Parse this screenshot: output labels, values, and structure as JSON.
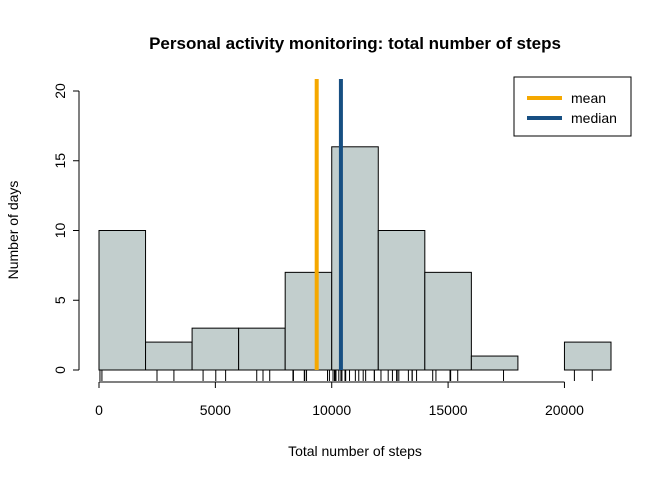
{
  "chart_data": {
    "type": "bar",
    "title": "Personal activity monitoring: total number of steps",
    "xlabel": "Total number of steps",
    "ylabel": "Number of days",
    "xlim": [
      0,
      22000
    ],
    "ylim": [
      0,
      20
    ],
    "xticks": [
      0,
      5000,
      10000,
      15000,
      20000
    ],
    "yticks": [
      0,
      5,
      10,
      15,
      20
    ],
    "bin_edges": [
      0,
      2000,
      4000,
      6000,
      8000,
      10000,
      12000,
      14000,
      16000,
      18000,
      20000,
      22000
    ],
    "counts": [
      10,
      2,
      3,
      3,
      7,
      16,
      10,
      7,
      1,
      0,
      2
    ],
    "bar_color": "#c2cecd",
    "mean": 9354,
    "median": 10395,
    "mean_color": "#f5a800",
    "median_color": "#174f82",
    "legend": {
      "placement": "top-right",
      "entries": [
        {
          "label": "mean",
          "color": "#f5a800"
        },
        {
          "label": "median",
          "color": "#174f82"
        }
      ]
    },
    "rug": [
      41,
      126,
      2492,
      3219,
      4472,
      5018,
      5441,
      6778,
      7047,
      7336,
      8334,
      8355,
      8821,
      8841,
      8918,
      9819,
      9900,
      10056,
      10119,
      10139,
      10183,
      10304,
      10395,
      10439,
      10571,
      10600,
      10765,
      11015,
      11162,
      11352,
      11458,
      11829,
      11834,
      12116,
      12426,
      12608,
      12787,
      12811,
      12883,
      13294,
      13452,
      13460,
      13646,
      14339,
      14478,
      15084,
      15098,
      15110,
      15414,
      17382,
      20427,
      21194
    ]
  }
}
